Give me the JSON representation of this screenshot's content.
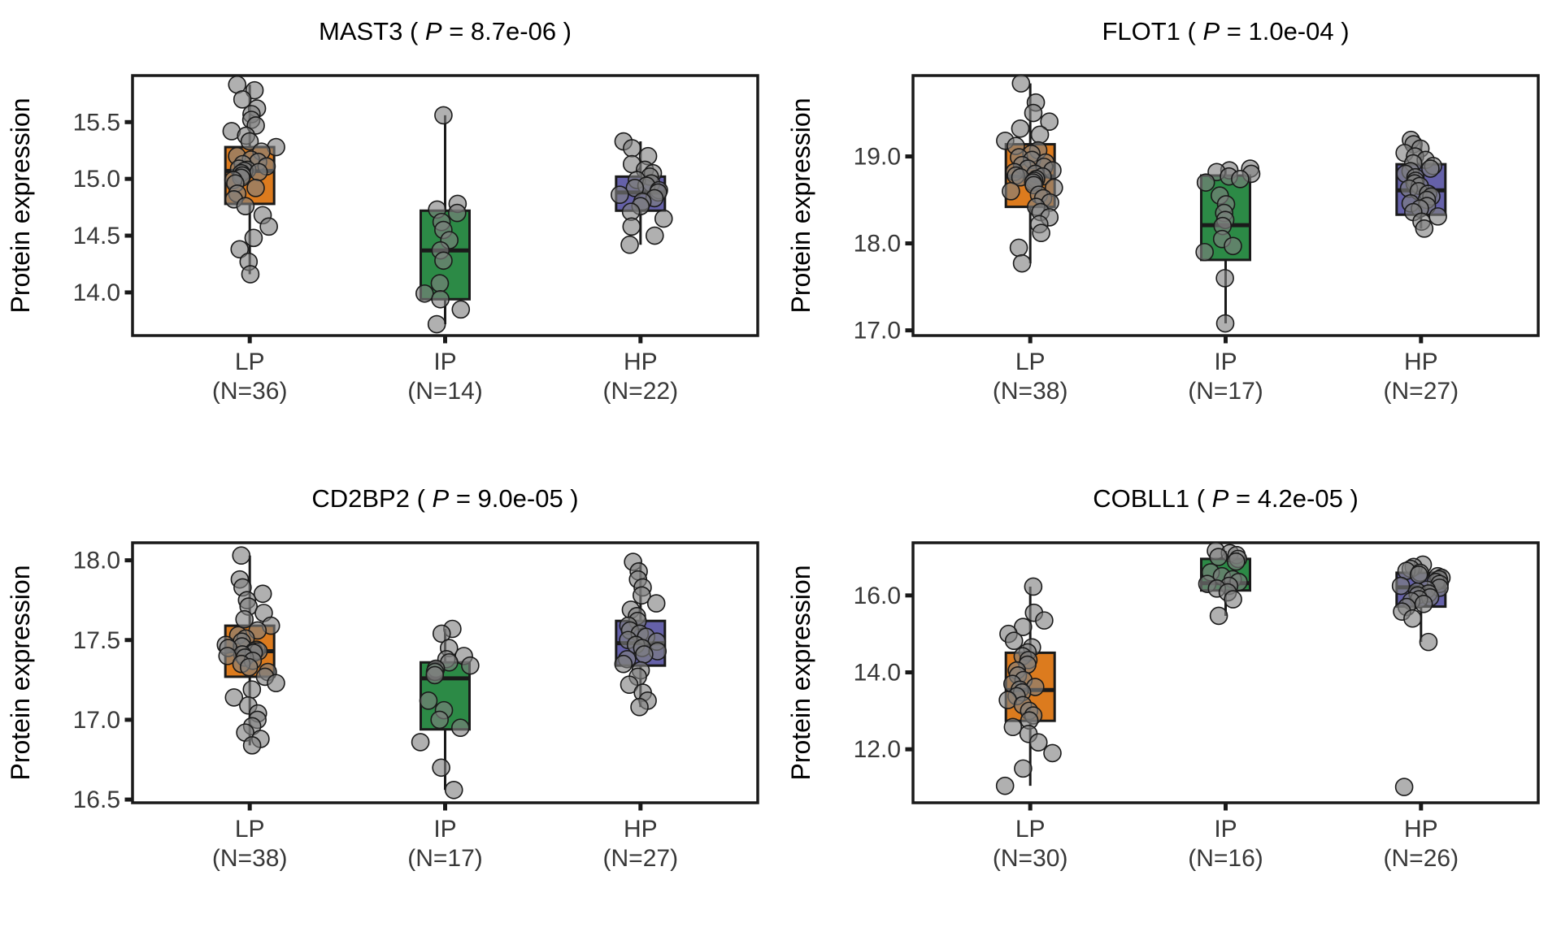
{
  "figure": {
    "ylabel": "Protein expression",
    "point_color": "#808080",
    "accent_colors": {
      "LP": "#DC7B1E",
      "IP": "#2C8A46",
      "HP": "#6561A9"
    }
  },
  "chart_data": [
    {
      "type": "boxplot-jitter",
      "gene": "MAST3",
      "p_symbol": "P",
      "p_value": "8.7e-06",
      "title": "MAST3  ( P = 8.7e-06 )",
      "ylabel": "Protein expression",
      "ylim": [
        13.62,
        15.91
      ],
      "yticks": [
        14.0,
        14.5,
        15.0,
        15.5
      ],
      "ytick_labels": [
        "14.0",
        "14.5",
        "15.0",
        "15.5"
      ],
      "groups": [
        {
          "label": "LP",
          "n_label": "(N=36)",
          "color": "#DC7B1E",
          "box": {
            "whisker_low": 14.16,
            "q1": 14.78,
            "median": 15.07,
            "q3": 15.28,
            "whisker_high": 15.83
          },
          "points": [
            15.83,
            15.78,
            15.7,
            15.62,
            15.57,
            15.52,
            15.47,
            15.42,
            15.38,
            15.33,
            15.28,
            15.24,
            15.2,
            15.17,
            15.15,
            15.13,
            15.11,
            15.09,
            15.08,
            15.07,
            15.06,
            15.05,
            15.03,
            15.01,
            14.99,
            14.96,
            14.92,
            14.87,
            14.82,
            14.76,
            14.68,
            14.58,
            14.48,
            14.38,
            14.27,
            14.16
          ]
        },
        {
          "label": "IP",
          "n_label": "(N=14)",
          "color": "#2C8A46",
          "box": {
            "whisker_low": 13.72,
            "q1": 13.94,
            "median": 14.37,
            "q3": 14.72,
            "whisker_high": 15.56
          },
          "points": [
            15.56,
            14.78,
            14.73,
            14.7,
            14.62,
            14.55,
            14.46,
            14.37,
            14.28,
            14.08,
            13.99,
            13.94,
            13.85,
            13.72
          ]
        },
        {
          "label": "HP",
          "n_label": "(N=22)",
          "color": "#6561A9",
          "box": {
            "whisker_low": 14.42,
            "q1": 14.72,
            "median": 14.88,
            "q3": 15.02,
            "whisker_high": 15.33
          },
          "points": [
            15.33,
            15.27,
            15.2,
            15.13,
            15.08,
            15.05,
            15.02,
            14.99,
            14.96,
            14.94,
            14.92,
            14.9,
            14.88,
            14.86,
            14.83,
            14.8,
            14.76,
            14.71,
            14.65,
            14.58,
            14.5,
            14.42
          ]
        }
      ]
    },
    {
      "type": "boxplot-jitter",
      "gene": "FLOT1",
      "p_symbol": "P",
      "p_value": "1.0e-04",
      "title": "FLOT1  ( P = 1.0e-04 )",
      "ylabel": "Protein expression",
      "ylim": [
        16.94,
        19.93
      ],
      "yticks": [
        17.0,
        18.0,
        19.0
      ],
      "ytick_labels": [
        "17.0",
        "18.0",
        "19.0"
      ],
      "groups": [
        {
          "label": "LP",
          "n_label": "(N=38)",
          "color": "#DC7B1E",
          "box": {
            "whisker_low": 17.77,
            "q1": 18.42,
            "median": 18.77,
            "q3": 19.14,
            "whisker_high": 19.84
          },
          "points": [
            19.84,
            19.62,
            19.5,
            19.4,
            19.32,
            19.25,
            19.18,
            19.12,
            19.07,
            19.03,
            18.99,
            18.96,
            18.93,
            18.9,
            18.88,
            18.86,
            18.84,
            18.82,
            18.8,
            18.78,
            18.77,
            18.76,
            18.74,
            18.72,
            18.7,
            18.67,
            18.64,
            18.6,
            18.56,
            18.52,
            18.47,
            18.42,
            18.36,
            18.3,
            18.22,
            18.12,
            17.95,
            17.77
          ]
        },
        {
          "label": "IP",
          "n_label": "(N=17)",
          "color": "#2C8A46",
          "box": {
            "whisker_low": 17.08,
            "q1": 17.81,
            "median": 18.21,
            "q3": 18.78,
            "whisker_high": 18.86
          },
          "points": [
            18.86,
            18.84,
            18.82,
            18.8,
            18.77,
            18.74,
            18.7,
            18.55,
            18.45,
            18.35,
            18.27,
            18.2,
            18.05,
            17.97,
            17.9,
            17.6,
            17.08
          ]
        },
        {
          "label": "HP",
          "n_label": "(N=27)",
          "color": "#6561A9",
          "box": {
            "whisker_low": 18.17,
            "q1": 18.33,
            "median": 18.61,
            "q3": 18.91,
            "whisker_high": 19.19
          },
          "points": [
            19.19,
            19.14,
            19.09,
            19.04,
            19.0,
            18.96,
            18.92,
            18.89,
            18.86,
            18.83,
            18.8,
            18.76,
            18.72,
            18.69,
            18.66,
            18.63,
            18.6,
            18.57,
            18.54,
            18.5,
            18.46,
            18.43,
            18.4,
            18.36,
            18.31,
            18.25,
            18.17
          ]
        }
      ]
    },
    {
      "type": "boxplot-jitter",
      "gene": "CD2BP2",
      "p_symbol": "P",
      "p_value": "9.0e-05",
      "title": "CD2BP2  ( P = 9.0e-05 )",
      "ylabel": "Protein expression",
      "ylim": [
        16.48,
        18.11
      ],
      "yticks": [
        16.5,
        17.0,
        17.5,
        18.0
      ],
      "ytick_labels": [
        "16.5",
        "17.0",
        "17.5",
        "18.0"
      ],
      "groups": [
        {
          "label": "LP",
          "n_label": "(N=38)",
          "color": "#DC7B1E",
          "box": {
            "whisker_low": 16.84,
            "q1": 17.27,
            "median": 17.43,
            "q3": 17.59,
            "whisker_high": 18.03
          },
          "points": [
            18.03,
            17.88,
            17.83,
            17.79,
            17.75,
            17.71,
            17.67,
            17.63,
            17.59,
            17.56,
            17.53,
            17.51,
            17.49,
            17.47,
            17.46,
            17.45,
            17.44,
            17.43,
            17.43,
            17.42,
            17.41,
            17.4,
            17.39,
            17.37,
            17.35,
            17.33,
            17.3,
            17.27,
            17.23,
            17.19,
            17.14,
            17.09,
            17.04,
            17.0,
            16.96,
            16.92,
            16.88,
            16.84
          ]
        },
        {
          "label": "IP",
          "n_label": "(N=17)",
          "color": "#2C8A46",
          "box": {
            "whisker_low": 16.56,
            "q1": 16.94,
            "median": 17.26,
            "q3": 17.36,
            "whisker_high": 17.57
          },
          "points": [
            17.57,
            17.54,
            17.45,
            17.4,
            17.38,
            17.36,
            17.34,
            17.32,
            17.3,
            17.28,
            17.12,
            17.06,
            17.0,
            16.95,
            16.86,
            16.7,
            16.56
          ]
        },
        {
          "label": "HP",
          "n_label": "(N=27)",
          "color": "#6561A9",
          "box": {
            "whisker_low": 17.08,
            "q1": 17.34,
            "median": 17.48,
            "q3": 17.62,
            "whisker_high": 17.99
          },
          "points": [
            17.99,
            17.93,
            17.88,
            17.83,
            17.78,
            17.73,
            17.69,
            17.65,
            17.62,
            17.59,
            17.56,
            17.54,
            17.52,
            17.5,
            17.49,
            17.47,
            17.45,
            17.43,
            17.41,
            17.38,
            17.35,
            17.31,
            17.27,
            17.22,
            17.17,
            17.12,
            17.08
          ]
        }
      ]
    },
    {
      "type": "boxplot-jitter",
      "gene": "COBLL1",
      "p_symbol": "P",
      "p_value": "4.2e-05",
      "title": "COBLL1  ( P = 4.2e-05 )",
      "ylabel": "Protein expression",
      "ylim": [
        10.61,
        17.37
      ],
      "yticks": [
        12.0,
        14.0,
        16.0
      ],
      "ytick_labels": [
        "12.0",
        "14.0",
        "16.0"
      ],
      "groups": [
        {
          "label": "LP",
          "n_label": "(N=30)",
          "color": "#DC7B1E",
          "box": {
            "whisker_low": 11.05,
            "q1": 12.74,
            "median": 13.54,
            "q3": 14.51,
            "whisker_high": 16.23
          },
          "points": [
            16.23,
            15.55,
            15.35,
            15.18,
            15.0,
            14.82,
            14.65,
            14.52,
            14.42,
            14.32,
            14.2,
            14.05,
            13.92,
            13.8,
            13.7,
            13.62,
            13.55,
            13.48,
            13.38,
            13.28,
            13.15,
            13.0,
            12.88,
            12.75,
            12.58,
            12.4,
            12.18,
            11.9,
            11.5,
            11.05
          ]
        },
        {
          "label": "IP",
          "n_label": "(N=16)",
          "color": "#2C8A46",
          "box": {
            "whisker_low": 15.47,
            "q1": 16.13,
            "median": 16.32,
            "q3": 16.95,
            "whisker_high": 17.16
          },
          "points": [
            17.16,
            17.1,
            17.05,
            17.0,
            16.95,
            16.88,
            16.6,
            16.5,
            16.42,
            16.35,
            16.3,
            16.25,
            16.18,
            16.08,
            15.9,
            15.47
          ]
        },
        {
          "label": "HP",
          "n_label": "(N=26)",
          "color": "#6561A9",
          "box": {
            "whisker_low": 14.79,
            "q1": 15.71,
            "median": 16.21,
            "q3": 16.59,
            "whisker_high": 16.8
          },
          "points": [
            16.8,
            16.74,
            16.69,
            16.64,
            16.59,
            16.54,
            16.5,
            16.46,
            16.42,
            16.35,
            16.3,
            16.25,
            16.2,
            16.15,
            16.1,
            16.05,
            16.0,
            15.95,
            15.9,
            15.85,
            15.78,
            15.7,
            15.58,
            15.4,
            14.79,
            11.02
          ]
        }
      ]
    }
  ]
}
